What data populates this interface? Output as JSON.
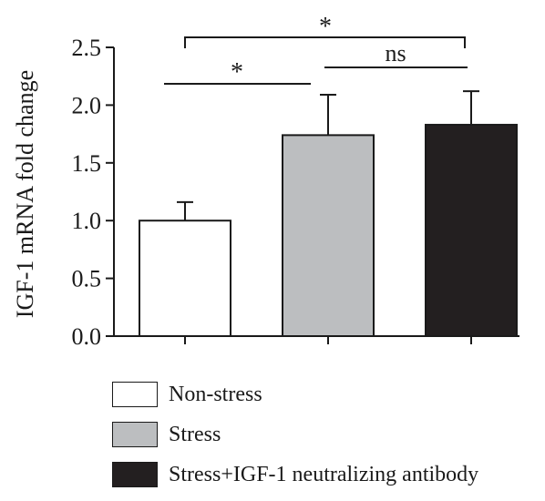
{
  "chart_data": {
    "type": "bar",
    "categories": [
      "Non-stress",
      "Stress",
      "Stress+IGF-1 neutralizing antibody"
    ],
    "values": [
      1.0,
      1.74,
      1.83
    ],
    "error": [
      0.16,
      0.35,
      0.29
    ],
    "colors": [
      "#ffffff",
      "#bcbec0",
      "#231f20"
    ],
    "ylabel": "IGF-1 mRNA fold change",
    "ylim": [
      0,
      2.5
    ],
    "yticks": [
      "0.0",
      "0.5",
      "1.0",
      "1.5",
      "2.0",
      "2.5"
    ],
    "significance": [
      {
        "from": 0,
        "to": 1,
        "label": "*"
      },
      {
        "from": 1,
        "to": 2,
        "label": "ns"
      },
      {
        "from": 0,
        "to": 2,
        "label": "*"
      }
    ],
    "legend": [
      "Non-stress",
      "Stress",
      "Stress+IGF-1 neutralizing antibody"
    ],
    "legend_position": "bottom"
  }
}
